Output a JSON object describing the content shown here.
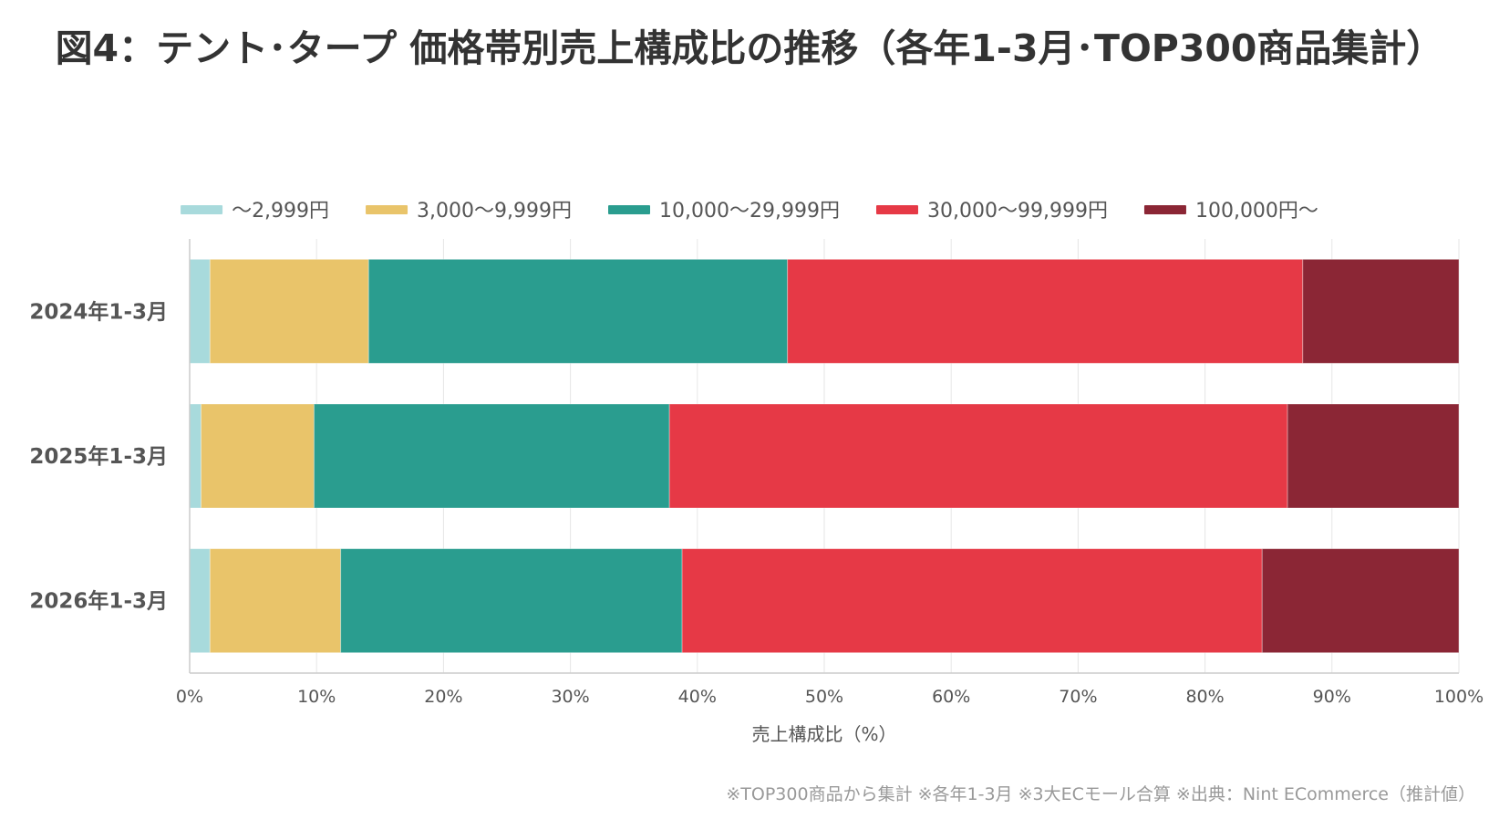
{
  "title": "図4：テント･タープ 価格帯別売上構成比の推移（各年1-3月･TOP300商品集計）",
  "footnote": "※TOP300商品から集計 ※各年1-3月 ※3大ECモール合算 ※出典：Nint ECommerce（推計値）",
  "chart_data": {
    "type": "bar",
    "orientation": "horizontal",
    "stacked": true,
    "title": "図4：テント･タープ 価格帯別売上構成比の推移（各年1-3月･TOP300商品集計）",
    "xlabel": "売上構成比（%）",
    "ylabel": "",
    "xlim": [
      0,
      100
    ],
    "x_ticks": [
      "0%",
      "10%",
      "20%",
      "30%",
      "40%",
      "50%",
      "60%",
      "70%",
      "80%",
      "90%",
      "100%"
    ],
    "grid": true,
    "legend_position": "top",
    "categories": [
      "2024年1-3月",
      "2025年1-3月",
      "2026年1-3月"
    ],
    "series": [
      {
        "name": "～2,999円",
        "color": "#a8dadc",
        "values": [
          1.6,
          0.9,
          1.6
        ]
      },
      {
        "name": "3,000～9,999円",
        "color": "#e9c46a",
        "values": [
          12.5,
          8.9,
          10.3
        ]
      },
      {
        "name": "10,000～29,999円",
        "color": "#2a9d8f",
        "values": [
          33.0,
          28.0,
          26.9
        ]
      },
      {
        "name": "30,000～99,999円",
        "color": "#e63946",
        "values": [
          40.6,
          48.7,
          45.7
        ]
      },
      {
        "name": "100,000円～",
        "color": "#8b2635",
        "values": [
          12.3,
          13.5,
          15.5
        ]
      }
    ]
  }
}
